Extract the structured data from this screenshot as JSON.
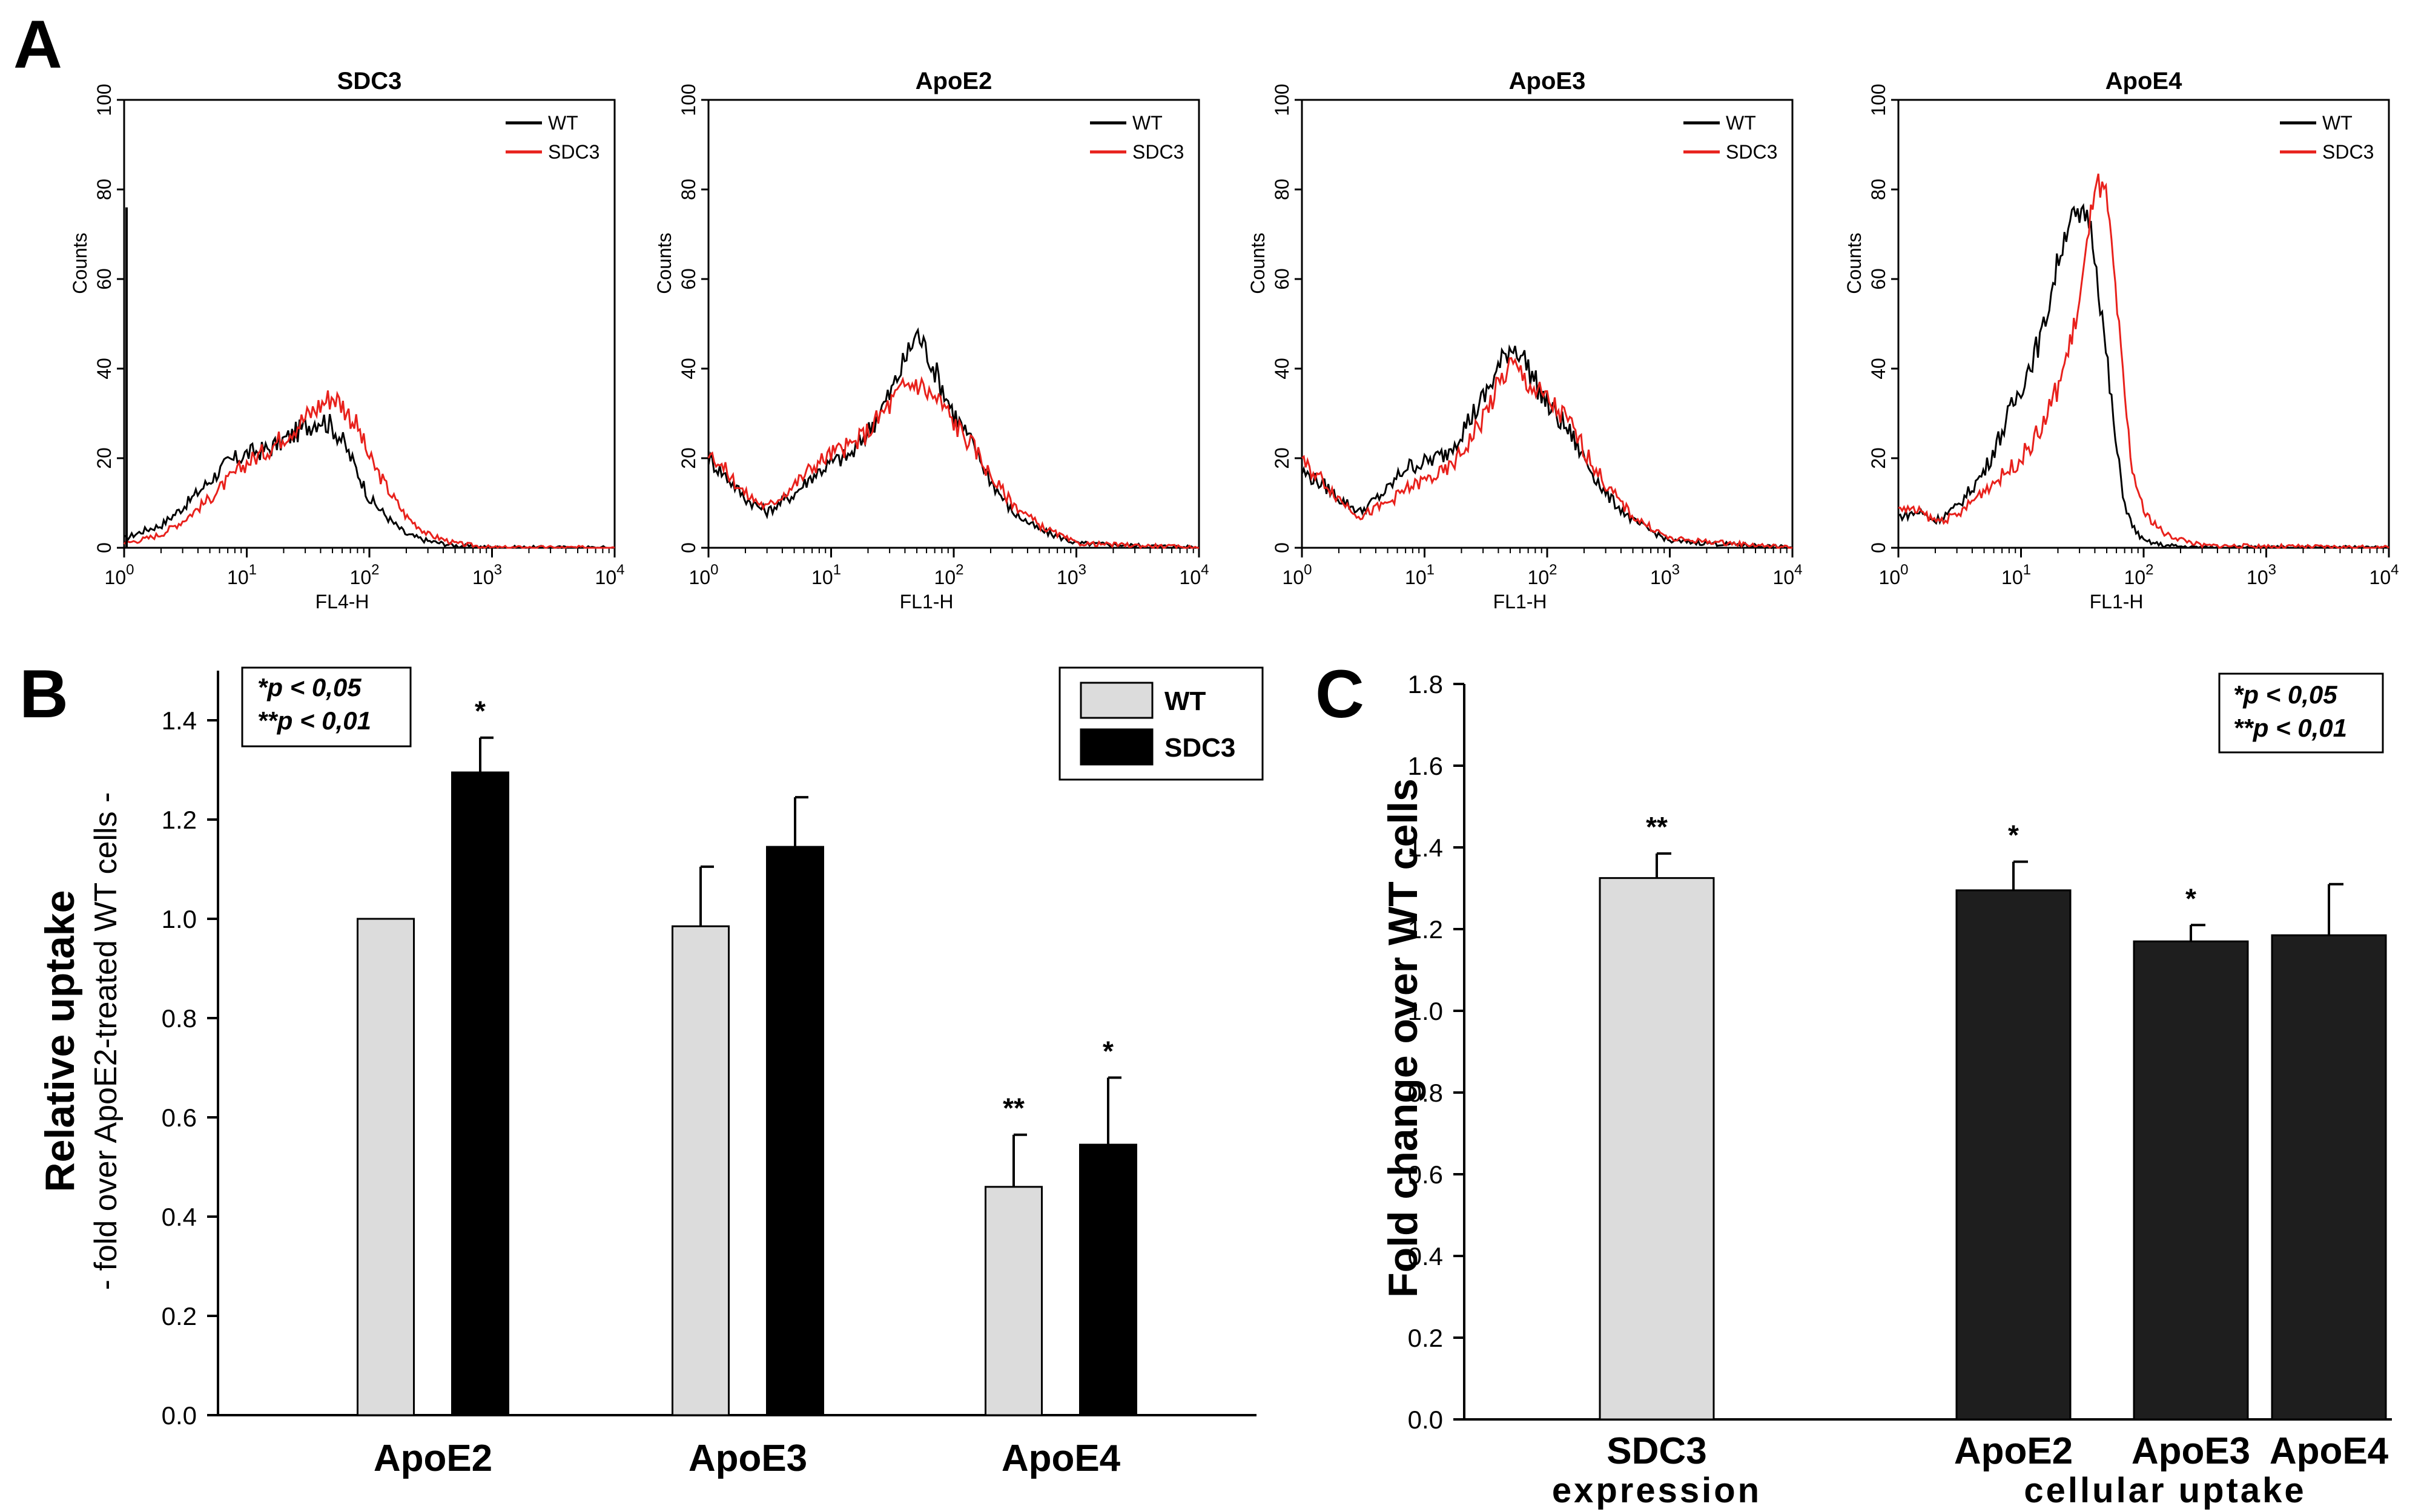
{
  "panel_letters": {
    "a": "A",
    "b": "B",
    "c": "C"
  },
  "colors": {
    "wt_line": "#000000",
    "sdc3_line": "#e8211c",
    "wt_bar": "#dcdcdc",
    "sdc3_bar": "#000000",
    "uptake_bar": "#1e1e1e"
  },
  "chart_data": [
    {
      "type": "line",
      "title": "SDC3",
      "xlabel": "FL4-H",
      "ylabel": "Counts",
      "xscale": "log",
      "xlim": [
        1,
        10000
      ],
      "ylim": [
        0,
        100
      ],
      "xticks": [
        {
          "base": "10",
          "exp": "0"
        },
        {
          "base": "10",
          "exp": "1"
        },
        {
          "base": "10",
          "exp": "2"
        },
        {
          "base": "10",
          "exp": "3"
        },
        {
          "base": "10",
          "exp": "4"
        }
      ],
      "yticks": [
        "0",
        "20",
        "40",
        "60",
        "80",
        "100"
      ],
      "legend": [
        "WT",
        "SDC3"
      ],
      "series": [
        {
          "name": "WT",
          "x": [
            1,
            1.5,
            2,
            3,
            5,
            7,
            10,
            15,
            20,
            30,
            40,
            50,
            60,
            80,
            100,
            150,
            200,
            300,
            500,
            1000,
            10000
          ],
          "y": [
            2,
            4,
            5,
            9,
            15,
            19,
            21,
            22,
            24,
            27,
            29,
            27,
            24,
            17,
            11,
            6,
            3,
            1.5,
            0.5,
            0,
            0
          ]
        },
        {
          "name": "SDC3",
          "x": [
            1,
            1.5,
            2,
            3,
            5,
            7,
            10,
            15,
            20,
            30,
            40,
            50,
            60,
            80,
            100,
            150,
            200,
            300,
            500,
            1000,
            10000
          ],
          "y": [
            1,
            2,
            3,
            6,
            11,
            15,
            19,
            22,
            25,
            29,
            32,
            34,
            32,
            27,
            20,
            12,
            7,
            3,
            1,
            0,
            0
          ]
        }
      ]
    },
    {
      "type": "line",
      "title": "ApoE2",
      "xlabel": "FL1-H",
      "ylabel": "Counts",
      "xscale": "log",
      "xlim": [
        1,
        10000
      ],
      "ylim": [
        0,
        100
      ],
      "xticks": [
        {
          "base": "10",
          "exp": "0"
        },
        {
          "base": "10",
          "exp": "1"
        },
        {
          "base": "10",
          "exp": "2"
        },
        {
          "base": "10",
          "exp": "3"
        },
        {
          "base": "10",
          "exp": "4"
        }
      ],
      "yticks": [
        "0",
        "20",
        "40",
        "60",
        "80",
        "100"
      ],
      "legend": [
        "WT",
        "SDC3"
      ],
      "series": [
        {
          "name": "WT",
          "x": [
            1,
            1.5,
            2,
            3,
            5,
            7,
            10,
            15,
            20,
            30,
            40,
            50,
            60,
            80,
            100,
            150,
            200,
            300,
            500,
            1000,
            10000
          ],
          "y": [
            20,
            15,
            11,
            8,
            12,
            16,
            19,
            21,
            26,
            34,
            42,
            48,
            44,
            36,
            30,
            22,
            15,
            8,
            4,
            1,
            0
          ]
        },
        {
          "name": "SDC3",
          "x": [
            1,
            1.5,
            2,
            3,
            5,
            7,
            10,
            15,
            20,
            30,
            40,
            50,
            60,
            80,
            100,
            150,
            200,
            300,
            500,
            1000,
            10000
          ],
          "y": [
            22,
            16,
            12,
            9,
            14,
            18,
            21,
            23,
            26,
            32,
            36,
            37,
            35,
            32,
            28,
            22,
            16,
            10,
            5,
            1,
            0
          ]
        }
      ]
    },
    {
      "type": "line",
      "title": "ApoE3",
      "xlabel": "FL1-H",
      "ylabel": "Counts",
      "xscale": "log",
      "xlim": [
        1,
        10000
      ],
      "ylim": [
        0,
        100
      ],
      "xticks": [
        {
          "base": "10",
          "exp": "0"
        },
        {
          "base": "10",
          "exp": "1"
        },
        {
          "base": "10",
          "exp": "2"
        },
        {
          "base": "10",
          "exp": "3"
        },
        {
          "base": "10",
          "exp": "4"
        }
      ],
      "yticks": [
        "0",
        "20",
        "40",
        "60",
        "80",
        "100"
      ],
      "legend": [
        "WT",
        "SDC3"
      ],
      "series": [
        {
          "name": "WT",
          "x": [
            1,
            1.5,
            2,
            3,
            5,
            7,
            10,
            15,
            20,
            30,
            40,
            50,
            60,
            80,
            100,
            150,
            200,
            300,
            500,
            1000,
            10000
          ],
          "y": [
            17,
            14,
            11,
            8,
            13,
            18,
            19,
            21,
            26,
            33,
            40,
            45,
            44,
            37,
            32,
            26,
            20,
            12,
            6,
            1.5,
            0
          ]
        },
        {
          "name": "SDC3",
          "x": [
            1,
            1.5,
            2,
            3,
            5,
            7,
            10,
            15,
            20,
            30,
            40,
            50,
            60,
            80,
            100,
            150,
            200,
            300,
            500,
            1000,
            10000
          ],
          "y": [
            19,
            15,
            11,
            7,
            10,
            13,
            15,
            17,
            21,
            29,
            36,
            41,
            39,
            35,
            33,
            28,
            22,
            14,
            7,
            2,
            0
          ]
        }
      ]
    },
    {
      "type": "line",
      "title": "ApoE4",
      "xlabel": "FL1-H",
      "ylabel": "Counts",
      "xscale": "log",
      "xlim": [
        1,
        10000
      ],
      "ylim": [
        0,
        100
      ],
      "xticks": [
        {
          "base": "10",
          "exp": "0"
        },
        {
          "base": "10",
          "exp": "1"
        },
        {
          "base": "10",
          "exp": "2"
        },
        {
          "base": "10",
          "exp": "3"
        },
        {
          "base": "10",
          "exp": "4"
        }
      ],
      "yticks": [
        "0",
        "20",
        "40",
        "60",
        "80",
        "100"
      ],
      "legend": [
        "WT",
        "SDC3"
      ],
      "series": [
        {
          "name": "WT",
          "x": [
            1,
            1.5,
            2,
            3,
            5,
            7,
            10,
            15,
            20,
            25,
            30,
            35,
            40,
            50,
            60,
            70,
            80,
            100,
            150,
            300,
            10000
          ],
          "y": [
            7,
            8,
            6,
            9,
            17,
            26,
            36,
            48,
            64,
            74,
            73,
            75,
            66,
            42,
            22,
            10,
            5,
            1.5,
            0.5,
            0,
            0
          ]
        },
        {
          "name": "SDC3",
          "x": [
            1,
            1.5,
            2,
            3,
            5,
            7,
            10,
            15,
            20,
            25,
            30,
            35,
            40,
            50,
            60,
            70,
            80,
            100,
            150,
            300,
            10000
          ],
          "y": [
            9,
            8,
            6,
            7,
            13,
            16,
            20,
            27,
            36,
            45,
            55,
            68,
            82,
            78,
            55,
            33,
            18,
            8,
            3,
            0.5,
            0
          ]
        }
      ]
    },
    {
      "type": "bar",
      "ylabel": "Relative uptake",
      "ylabel_sub": "- fold over ApoE2-treated WT cells -",
      "ylim": [
        0,
        1.5
      ],
      "yticks": [
        "0.0",
        "0.2",
        "0.4",
        "0.6",
        "0.8",
        "1.0",
        "1.2",
        "1.4"
      ],
      "categories": [
        "ApoE2",
        "ApoE3",
        "ApoE4"
      ],
      "legend": [
        "WT",
        "SDC3"
      ],
      "series": [
        {
          "name": "WT",
          "values": [
            1.0,
            0.985,
            0.46
          ],
          "errors": [
            0.0,
            0.12,
            0.105
          ],
          "sig": [
            "",
            "",
            "**"
          ]
        },
        {
          "name": "SDC3",
          "values": [
            1.295,
            1.145,
            0.545
          ],
          "errors": [
            0.07,
            0.1,
            0.135
          ],
          "sig": [
            "*",
            "",
            "*"
          ]
        }
      ],
      "annotation": [
        "*p < 0,05",
        "**p < 0,01"
      ]
    },
    {
      "type": "bar",
      "ylabel": "Fold change over WT cells",
      "ylim": [
        0,
        1.8
      ],
      "yticks": [
        "0.0",
        "0.2",
        "0.4",
        "0.6",
        "0.8",
        "1.0",
        "1.2",
        "1.4",
        "1.6",
        "1.8"
      ],
      "categories": [
        "SDC3",
        "ApoE2",
        "ApoE3",
        "ApoE4"
      ],
      "group_labels": [
        "expression",
        "cellular uptake"
      ],
      "values": [
        1.325,
        1.295,
        1.17,
        1.185
      ],
      "errors": [
        0.06,
        0.07,
        0.04,
        0.125
      ],
      "sig": [
        "**",
        "*",
        "*",
        ""
      ],
      "annotation": [
        "*p < 0,05",
        "**p < 0,01"
      ]
    }
  ]
}
